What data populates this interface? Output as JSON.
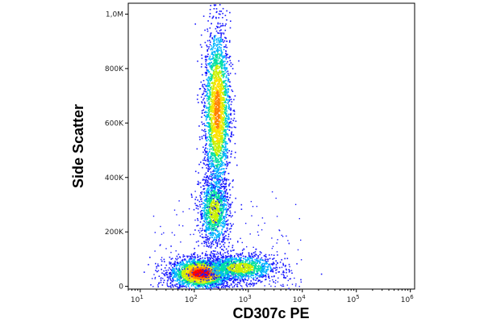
{
  "chart_data": {
    "type": "scatter",
    "subtype": "flow-cytometry-density-dot-plot",
    "xlabel": "CD307c PE",
    "ylabel": "Side Scatter",
    "x_scale": "log",
    "y_scale": "linear",
    "xlim": [
      6,
      1200000
    ],
    "ylim": [
      -10000,
      1040000
    ],
    "x_ticks": [
      {
        "value": 10,
        "base": "10",
        "exp": "1"
      },
      {
        "value": 100,
        "base": "10",
        "exp": "2"
      },
      {
        "value": 1000,
        "base": "10",
        "exp": "3"
      },
      {
        "value": 10000,
        "base": "10",
        "exp": "4"
      },
      {
        "value": 100000,
        "base": "10",
        "exp": "5"
      },
      {
        "value": 1000000,
        "base": "10",
        "exp": "6"
      }
    ],
    "y_ticks": [
      {
        "value": 0,
        "label": "0"
      },
      {
        "value": 200000,
        "label": "200K"
      },
      {
        "value": 400000,
        "label": "400K"
      },
      {
        "value": 600000,
        "label": "600K"
      },
      {
        "value": 800000,
        "label": "800K"
      },
      {
        "value": 1000000,
        "label": "1,0M"
      }
    ],
    "grid": false,
    "legend": "none",
    "color_scale": [
      "#1a1aff",
      "#00b4ff",
      "#00e0a0",
      "#c8f000",
      "#ffe000",
      "#ff8000",
      "#ff0000"
    ],
    "populations": [
      {
        "center_x": 130,
        "center_y": 50000,
        "spread_x_decades": 0.28,
        "spread_y": 28000,
        "density": "highest"
      },
      {
        "center_x": 700,
        "center_y": 70000,
        "spread_x_decades": 0.35,
        "spread_y": 25000,
        "density": "medium"
      },
      {
        "center_x": 230,
        "center_y": 280000,
        "spread_x_decades": 0.14,
        "spread_y": 65000,
        "density": "medium"
      },
      {
        "center_x": 260,
        "center_y": 650000,
        "spread_x_decades": 0.12,
        "spread_y": 150000,
        "density": "high"
      }
    ]
  }
}
